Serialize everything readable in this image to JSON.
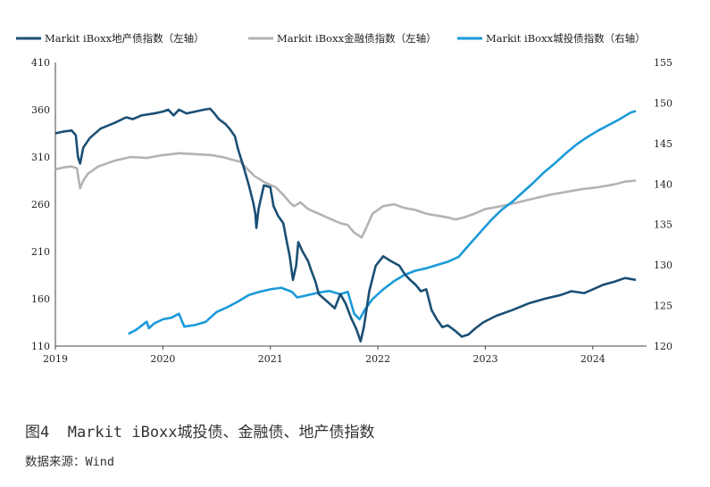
{
  "caption": "图4  Markit iBoxx城投债、金融债、地产债指数",
  "source": "数据来源：Wind",
  "chart_data": {
    "type": "line",
    "title": "",
    "grid": false,
    "legend_position": "top",
    "x_ticks": [
      "2019",
      "2020",
      "2021",
      "2022",
      "2023",
      "2024"
    ],
    "y_left": {
      "range": [
        110,
        410
      ],
      "ticks": [
        "410",
        "360",
        "310",
        "260",
        "210",
        "160",
        "110"
      ]
    },
    "y_right": {
      "range": [
        120,
        155
      ],
      "ticks": [
        "155",
        "150",
        "145",
        "140",
        "135",
        "130",
        "125",
        "120"
      ]
    },
    "series": [
      {
        "name": "Markit iBoxx地产债指数（左轴）",
        "axis": "left",
        "color": "#1a4f74",
        "points": [
          [
            2019.0,
            335
          ],
          [
            2019.08,
            337
          ],
          [
            2019.15,
            338
          ],
          [
            2019.19,
            333
          ],
          [
            2019.21,
            310
          ],
          [
            2019.23,
            303
          ],
          [
            2019.26,
            320
          ],
          [
            2019.32,
            330
          ],
          [
            2019.42,
            340
          ],
          [
            2019.55,
            346
          ],
          [
            2019.66,
            352
          ],
          [
            2019.72,
            350
          ],
          [
            2019.8,
            354
          ],
          [
            2019.92,
            356
          ],
          [
            2020.0,
            358
          ],
          [
            2020.05,
            360
          ],
          [
            2020.1,
            354
          ],
          [
            2020.15,
            360
          ],
          [
            2020.22,
            356
          ],
          [
            2020.3,
            358
          ],
          [
            2020.38,
            360
          ],
          [
            2020.44,
            361
          ],
          [
            2020.48,
            356
          ],
          [
            2020.52,
            350
          ],
          [
            2020.58,
            345
          ],
          [
            2020.62,
            340
          ],
          [
            2020.67,
            332
          ],
          [
            2020.7,
            318
          ],
          [
            2020.75,
            300
          ],
          [
            2020.8,
            280
          ],
          [
            2020.84,
            262
          ],
          [
            2020.86,
            250
          ],
          [
            2020.87,
            235
          ],
          [
            2020.89,
            255
          ],
          [
            2020.94,
            280
          ],
          [
            2021.0,
            278
          ],
          [
            2021.03,
            258
          ],
          [
            2021.07,
            248
          ],
          [
            2021.12,
            240
          ],
          [
            2021.15,
            222
          ],
          [
            2021.18,
            205
          ],
          [
            2021.21,
            180
          ],
          [
            2021.24,
            195
          ],
          [
            2021.26,
            220
          ],
          [
            2021.3,
            210
          ],
          [
            2021.35,
            200
          ],
          [
            2021.38,
            190
          ],
          [
            2021.42,
            178
          ],
          [
            2021.45,
            165
          ],
          [
            2021.5,
            160
          ],
          [
            2021.55,
            155
          ],
          [
            2021.6,
            150
          ],
          [
            2021.65,
            165
          ],
          [
            2021.7,
            155
          ],
          [
            2021.75,
            140
          ],
          [
            2021.8,
            128
          ],
          [
            2021.84,
            115
          ],
          [
            2021.87,
            130
          ],
          [
            2021.92,
            168
          ],
          [
            2021.98,
            195
          ],
          [
            2022.05,
            205
          ],
          [
            2022.12,
            200
          ],
          [
            2022.2,
            195
          ],
          [
            2022.25,
            186
          ],
          [
            2022.3,
            180
          ],
          [
            2022.35,
            175
          ],
          [
            2022.4,
            168
          ],
          [
            2022.45,
            170
          ],
          [
            2022.5,
            148
          ],
          [
            2022.55,
            138
          ],
          [
            2022.6,
            130
          ],
          [
            2022.65,
            132
          ],
          [
            2022.72,
            126
          ],
          [
            2022.78,
            120
          ],
          [
            2022.84,
            122
          ],
          [
            2022.9,
            128
          ],
          [
            2022.98,
            135
          ],
          [
            2023.1,
            142
          ],
          [
            2023.25,
            148
          ],
          [
            2023.4,
            155
          ],
          [
            2023.55,
            160
          ],
          [
            2023.7,
            164
          ],
          [
            2023.8,
            168
          ],
          [
            2023.92,
            166
          ],
          [
            2024.0,
            170
          ],
          [
            2024.1,
            175
          ],
          [
            2024.2,
            178
          ],
          [
            2024.3,
            182
          ],
          [
            2024.4,
            180
          ]
        ]
      },
      {
        "name": "Markit iBoxx金融债指数（左轴）",
        "axis": "left",
        "color": "#b3b3b3",
        "points": [
          [
            2019.0,
            297
          ],
          [
            2019.08,
            299
          ],
          [
            2019.15,
            300
          ],
          [
            2019.2,
            298
          ],
          [
            2019.23,
            277
          ],
          [
            2019.26,
            285
          ],
          [
            2019.3,
            292
          ],
          [
            2019.4,
            300
          ],
          [
            2019.55,
            306
          ],
          [
            2019.7,
            310
          ],
          [
            2019.85,
            309
          ],
          [
            2020.0,
            312
          ],
          [
            2020.15,
            314
          ],
          [
            2020.3,
            313
          ],
          [
            2020.45,
            312
          ],
          [
            2020.55,
            310
          ],
          [
            2020.65,
            307
          ],
          [
            2020.72,
            305
          ],
          [
            2020.78,
            298
          ],
          [
            2020.85,
            290
          ],
          [
            2020.95,
            283
          ],
          [
            2021.05,
            278
          ],
          [
            2021.12,
            270
          ],
          [
            2021.18,
            262
          ],
          [
            2021.22,
            258
          ],
          [
            2021.28,
            262
          ],
          [
            2021.35,
            255
          ],
          [
            2021.45,
            250
          ],
          [
            2021.55,
            245
          ],
          [
            2021.65,
            240
          ],
          [
            2021.72,
            238
          ],
          [
            2021.78,
            230
          ],
          [
            2021.85,
            225
          ],
          [
            2021.88,
            232
          ],
          [
            2021.95,
            250
          ],
          [
            2022.05,
            258
          ],
          [
            2022.15,
            260
          ],
          [
            2022.25,
            256
          ],
          [
            2022.35,
            254
          ],
          [
            2022.45,
            250
          ],
          [
            2022.55,
            248
          ],
          [
            2022.65,
            246
          ],
          [
            2022.72,
            244
          ],
          [
            2022.8,
            246
          ],
          [
            2022.9,
            250
          ],
          [
            2023.0,
            255
          ],
          [
            2023.15,
            258
          ],
          [
            2023.3,
            262
          ],
          [
            2023.45,
            266
          ],
          [
            2023.6,
            270
          ],
          [
            2023.75,
            273
          ],
          [
            2023.9,
            276
          ],
          [
            2024.05,
            278
          ],
          [
            2024.2,
            281
          ],
          [
            2024.3,
            284
          ],
          [
            2024.4,
            285
          ]
        ]
      },
      {
        "name": "Markit iBoxx城投债指数（右轴）",
        "axis": "right",
        "color": "#1a9ad9",
        "points": [
          [
            2019.68,
            121.5
          ],
          [
            2019.75,
            122.0
          ],
          [
            2019.8,
            122.5
          ],
          [
            2019.85,
            123.0
          ],
          [
            2019.87,
            122.2
          ],
          [
            2019.92,
            122.8
          ],
          [
            2020.0,
            123.3
          ],
          [
            2020.08,
            123.5
          ],
          [
            2020.15,
            124.0
          ],
          [
            2020.18,
            123.0
          ],
          [
            2020.2,
            122.4
          ],
          [
            2020.3,
            122.6
          ],
          [
            2020.4,
            123.0
          ],
          [
            2020.5,
            124.2
          ],
          [
            2020.6,
            124.8
          ],
          [
            2020.7,
            125.5
          ],
          [
            2020.8,
            126.3
          ],
          [
            2020.9,
            126.7
          ],
          [
            2021.0,
            127.0
          ],
          [
            2021.1,
            127.2
          ],
          [
            2021.2,
            126.7
          ],
          [
            2021.25,
            126.0
          ],
          [
            2021.35,
            126.3
          ],
          [
            2021.45,
            126.6
          ],
          [
            2021.55,
            126.8
          ],
          [
            2021.65,
            126.4
          ],
          [
            2021.72,
            126.7
          ],
          [
            2021.78,
            124.0
          ],
          [
            2021.83,
            123.3
          ],
          [
            2021.88,
            124.5
          ],
          [
            2021.95,
            125.8
          ],
          [
            2022.05,
            127.0
          ],
          [
            2022.15,
            128.0
          ],
          [
            2022.25,
            128.8
          ],
          [
            2022.35,
            129.3
          ],
          [
            2022.45,
            129.6
          ],
          [
            2022.55,
            130.0
          ],
          [
            2022.65,
            130.4
          ],
          [
            2022.75,
            131.0
          ],
          [
            2022.85,
            132.5
          ],
          [
            2022.95,
            134.0
          ],
          [
            2023.05,
            135.5
          ],
          [
            2023.15,
            136.8
          ],
          [
            2023.25,
            137.8
          ],
          [
            2023.35,
            139.0
          ],
          [
            2023.45,
            140.2
          ],
          [
            2023.55,
            141.5
          ],
          [
            2023.65,
            142.6
          ],
          [
            2023.75,
            143.8
          ],
          [
            2023.85,
            144.9
          ],
          [
            2023.95,
            145.8
          ],
          [
            2024.05,
            146.6
          ],
          [
            2024.15,
            147.3
          ],
          [
            2024.25,
            148.0
          ],
          [
            2024.35,
            148.8
          ],
          [
            2024.4,
            149.0
          ]
        ]
      }
    ]
  }
}
